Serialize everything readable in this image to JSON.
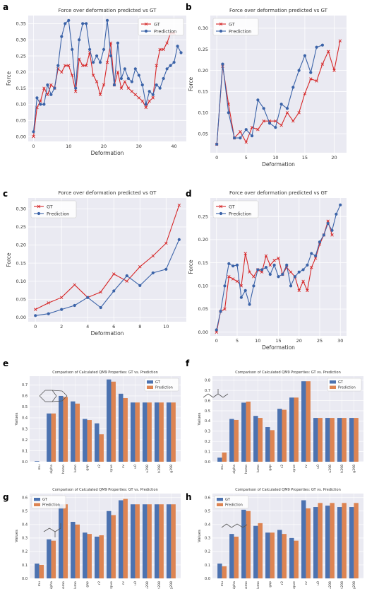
{
  "colors": {
    "gt_line": "#d62728",
    "pred_line": "#3b63a8",
    "gt_bar": "#4c72b0",
    "pred_bar": "#dd8452",
    "plot_bg": "#eaeaf2"
  },
  "chart_data": [
    {
      "panel": "a",
      "type": "line",
      "title": "Force over deformation predicted vs GT",
      "xlabel": "Deformation",
      "ylabel": "Force",
      "xlim": [
        -1.5,
        43.5
      ],
      "ylim": [
        -0.015,
        0.375
      ],
      "xticks": [
        0,
        10,
        20,
        30,
        40
      ],
      "yticks": [
        0.0,
        0.05,
        0.1,
        0.15,
        0.2,
        0.25,
        0.3,
        0.35
      ],
      "ytick_labels": [
        "0.00",
        "0.05",
        "0.10",
        "0.15",
        "0.20",
        "0.25",
        "0.30",
        "0.35"
      ],
      "legend": "top-right",
      "grid": true,
      "series": [
        {
          "name": "GT",
          "marker": "x",
          "x": [
            0,
            1,
            2,
            3,
            4,
            5,
            6,
            7,
            8,
            9,
            10,
            11,
            12,
            13,
            14,
            15,
            16,
            17,
            18,
            19,
            20,
            21,
            22,
            23,
            24,
            25,
            26,
            27,
            28,
            29,
            30,
            31,
            32,
            33,
            34,
            35,
            36,
            37,
            38,
            39,
            40
          ],
          "y": [
            0.0,
            0.09,
            0.11,
            0.15,
            0.13,
            0.16,
            0.15,
            0.21,
            0.2,
            0.22,
            0.22,
            0.19,
            0.14,
            0.24,
            0.22,
            0.22,
            0.26,
            0.19,
            0.17,
            0.13,
            0.16,
            0.23,
            0.29,
            0.16,
            0.2,
            0.15,
            0.17,
            0.15,
            0.14,
            0.13,
            0.12,
            0.11,
            0.09,
            0.11,
            0.12,
            0.22,
            0.27,
            0.27,
            0.29,
            0.32,
            0.32
          ]
        },
        {
          "name": "Prediction",
          "marker": "o",
          "x": [
            0,
            1,
            2,
            3,
            4,
            5,
            6,
            7,
            8,
            9,
            10,
            11,
            12,
            13,
            14,
            15,
            16,
            17,
            18,
            19,
            20,
            21,
            22,
            23,
            24,
            25,
            26,
            27,
            28,
            29,
            30,
            31,
            32,
            33,
            34,
            35,
            36,
            37,
            38,
            39,
            40,
            41,
            42
          ],
          "y": [
            0.015,
            0.12,
            0.1,
            0.1,
            0.16,
            0.13,
            0.15,
            0.22,
            0.31,
            0.35,
            0.36,
            0.27,
            0.15,
            0.3,
            0.35,
            0.35,
            0.27,
            0.23,
            0.25,
            0.23,
            0.27,
            0.36,
            0.25,
            0.16,
            0.29,
            0.18,
            0.21,
            0.18,
            0.17,
            0.21,
            0.19,
            0.16,
            0.1,
            0.14,
            0.13,
            0.16,
            0.15,
            0.18,
            0.21,
            0.22,
            0.23,
            0.28,
            0.26
          ]
        }
      ]
    },
    {
      "panel": "b",
      "type": "line",
      "title": "Force over deformation predicted vs GT",
      "xlabel": "Deformation",
      "ylabel": "Force",
      "xlim": [
        -1.1,
        22.1
      ],
      "ylim": [
        0.005,
        0.33
      ],
      "xticks": [
        0,
        5,
        10,
        15,
        20
      ],
      "yticks": [
        0.05,
        0.1,
        0.15,
        0.2,
        0.25,
        0.3
      ],
      "ytick_labels": [
        "0.05",
        "0.10",
        "0.15",
        "0.20",
        "0.25",
        "0.30"
      ],
      "legend": "top-left",
      "grid": true,
      "series": [
        {
          "name": "GT",
          "marker": "x",
          "x": [
            0,
            1,
            2,
            3,
            4,
            5,
            6,
            7,
            8,
            9,
            10,
            11,
            12,
            13,
            14,
            15,
            16,
            17,
            18,
            19,
            20,
            21
          ],
          "y": [
            0.025,
            0.21,
            0.12,
            0.04,
            0.055,
            0.03,
            0.065,
            0.06,
            0.08,
            0.08,
            0.08,
            0.07,
            0.1,
            0.08,
            0.1,
            0.145,
            0.18,
            0.175,
            0.215,
            0.245,
            0.2,
            0.27
          ]
        },
        {
          "name": "Prediction",
          "marker": "o",
          "x": [
            0,
            1,
            2,
            3,
            4,
            5,
            6,
            7,
            8,
            9,
            10,
            11,
            12,
            13,
            14,
            15,
            16,
            17,
            18
          ],
          "y": [
            0.025,
            0.215,
            0.1,
            0.04,
            0.04,
            0.06,
            0.045,
            0.13,
            0.11,
            0.075,
            0.065,
            0.12,
            0.11,
            0.16,
            0.2,
            0.235,
            0.195,
            0.255,
            0.26
          ]
        }
      ]
    },
    {
      "panel": "c",
      "type": "line",
      "title": "Force over deformation predicted vs GT",
      "xlabel": "Deformation",
      "ylabel": "Force",
      "xlim": [
        -0.55,
        11.55
      ],
      "ylim": [
        -0.012,
        0.33
      ],
      "xticks": [
        0,
        2,
        4,
        6,
        8,
        10
      ],
      "yticks": [
        0.0,
        0.05,
        0.1,
        0.15,
        0.2,
        0.25,
        0.3
      ],
      "ytick_labels": [
        "0.00",
        "0.05",
        "0.10",
        "0.15",
        "0.20",
        "0.25",
        "0.30"
      ],
      "legend": "top-left",
      "grid": true,
      "series": [
        {
          "name": "GT",
          "marker": "x",
          "x": [
            0,
            1,
            2,
            3,
            4,
            5,
            6,
            7,
            8,
            9,
            10,
            11
          ],
          "y": [
            0.022,
            0.04,
            0.055,
            0.09,
            0.055,
            0.07,
            0.12,
            0.1,
            0.14,
            0.17,
            0.205,
            0.31
          ]
        },
        {
          "name": "Prediction",
          "marker": "o",
          "x": [
            0,
            1,
            2,
            3,
            4,
            5,
            6,
            7,
            8,
            9,
            10,
            11
          ],
          "y": [
            0.005,
            0.01,
            0.022,
            0.033,
            0.055,
            0.027,
            0.073,
            0.115,
            0.088,
            0.123,
            0.133,
            0.215
          ]
        }
      ]
    },
    {
      "panel": "d",
      "type": "line",
      "title": "Force over deformation predicted vs GT",
      "xlabel": "Deformation",
      "ylabel": "Force",
      "xlim": [
        -1.5,
        31.5
      ],
      "ylim": [
        -0.008,
        0.29
      ],
      "xticks": [
        0,
        5,
        10,
        15,
        20,
        25,
        30
      ],
      "yticks": [
        0.0,
        0.05,
        0.1,
        0.15,
        0.2,
        0.25
      ],
      "ytick_labels": [
        "0.00",
        "0.05",
        "0.10",
        "0.15",
        "0.20",
        "0.25"
      ],
      "legend": "top-left",
      "grid": true,
      "series": [
        {
          "name": "GT",
          "marker": "x",
          "x": [
            0,
            1,
            2,
            3,
            4,
            5,
            6,
            7,
            8,
            9,
            10,
            11,
            12,
            13,
            14,
            15,
            16,
            17,
            18,
            19,
            20,
            21,
            22,
            23,
            24,
            25,
            26,
            27,
            28
          ],
          "y": [
            0.0,
            0.045,
            0.05,
            0.12,
            0.115,
            0.11,
            0.1,
            0.17,
            0.13,
            0.12,
            0.135,
            0.13,
            0.165,
            0.145,
            0.155,
            0.16,
            0.125,
            0.14,
            0.13,
            0.12,
            0.09,
            0.11,
            0.09,
            0.14,
            0.16,
            0.19,
            0.21,
            0.24,
            0.21
          ]
        },
        {
          "name": "Prediction",
          "marker": "o",
          "x": [
            0,
            1,
            2,
            3,
            4,
            5,
            6,
            7,
            8,
            9,
            10,
            11,
            12,
            13,
            14,
            15,
            16,
            17,
            18,
            19,
            20,
            21,
            22,
            23,
            24,
            25,
            26,
            27,
            28,
            29,
            30
          ],
          "y": [
            0.005,
            0.045,
            0.1,
            0.148,
            0.143,
            0.145,
            0.075,
            0.09,
            0.06,
            0.1,
            0.135,
            0.135,
            0.14,
            0.125,
            0.145,
            0.12,
            0.125,
            0.145,
            0.1,
            0.12,
            0.13,
            0.135,
            0.145,
            0.17,
            0.165,
            0.195,
            0.21,
            0.235,
            0.22,
            0.255,
            0.275
          ]
        }
      ]
    },
    {
      "panel": "e",
      "type": "bar",
      "title": "Comparison of Calculated QM9 Properties: GT vs. Prediction",
      "xlabel": "",
      "ylabel": "Values",
      "ylim": [
        0,
        0.78
      ],
      "yticks": [
        0.0,
        0.1,
        0.2,
        0.3,
        0.4,
        0.5,
        0.6,
        0.7
      ],
      "ytick_labels": [
        "0.0",
        "0.1",
        "0.2",
        "0.3",
        "0.4",
        "0.5",
        "0.6",
        "0.7"
      ],
      "legend": "top-right",
      "grid": true,
      "categories": [
        "mu",
        "alpha",
        "homo",
        "lumo",
        "gap",
        "r2",
        "zpve",
        "cv",
        "u0",
        "u298",
        "h298",
        "g298"
      ],
      "series": [
        {
          "name": "GT",
          "values": [
            0.005,
            0.44,
            0.6,
            0.55,
            0.39,
            0.35,
            0.75,
            0.62,
            0.54,
            0.54,
            0.54,
            0.54
          ]
        },
        {
          "name": "Prediction",
          "values": [
            0.0,
            0.44,
            0.59,
            0.53,
            0.38,
            0.25,
            0.73,
            0.58,
            0.54,
            0.54,
            0.54,
            0.54
          ]
        }
      ]
    },
    {
      "panel": "f",
      "type": "bar",
      "title": "Comparison of Calculated QM9 Properties: GT vs. Prediction",
      "xlabel": "",
      "ylabel": "Values",
      "ylim": [
        0,
        0.84
      ],
      "yticks": [
        0.0,
        0.1,
        0.2,
        0.3,
        0.4,
        0.5,
        0.6,
        0.7,
        0.8
      ],
      "ytick_labels": [
        "0.0",
        "0.1",
        "0.2",
        "0.3",
        "0.4",
        "0.5",
        "0.6",
        "0.7",
        "0.8"
      ],
      "legend": "top-right",
      "grid": true,
      "categories": [
        "mu",
        "alpha",
        "homo",
        "lumo",
        "gap",
        "r2",
        "zpve",
        "cv",
        "u0",
        "u298",
        "h298",
        "g298"
      ],
      "series": [
        {
          "name": "GT",
          "values": [
            0.04,
            0.42,
            0.58,
            0.45,
            0.34,
            0.52,
            0.63,
            0.79,
            0.43,
            0.43,
            0.43,
            0.43
          ]
        },
        {
          "name": "Prediction",
          "values": [
            0.09,
            0.41,
            0.59,
            0.43,
            0.31,
            0.51,
            0.63,
            0.79,
            0.43,
            0.43,
            0.43,
            0.43
          ]
        }
      ]
    },
    {
      "panel": "g",
      "type": "bar",
      "title": "Comparison of Calculated QM9 Properties: GT vs. Prediction",
      "xlabel": "",
      "ylabel": "Values",
      "ylim": [
        0,
        0.63
      ],
      "yticks": [
        0.0,
        0.1,
        0.2,
        0.3,
        0.4,
        0.5,
        0.6
      ],
      "ytick_labels": [
        "0.0",
        "0.1",
        "0.2",
        "0.3",
        "0.4",
        "0.5",
        "0.6"
      ],
      "legend": "top-left",
      "grid": true,
      "categories": [
        "mu",
        "alpha",
        "homo",
        "lumo",
        "gap",
        "r2",
        "zpve",
        "cv",
        "u0",
        "u298",
        "h298",
        "g298"
      ],
      "series": [
        {
          "name": "GT",
          "values": [
            0.11,
            0.29,
            0.55,
            0.42,
            0.34,
            0.31,
            0.5,
            0.58,
            0.55,
            0.55,
            0.55,
            0.55
          ]
        },
        {
          "name": "Prediction",
          "values": [
            0.1,
            0.28,
            0.55,
            0.4,
            0.33,
            0.32,
            0.47,
            0.59,
            0.55,
            0.55,
            0.55,
            0.55
          ]
        }
      ]
    },
    {
      "panel": "h",
      "type": "bar",
      "title": "Comparison of Calculated QM9 Properties: GT vs. Prediction",
      "xlabel": "",
      "ylabel": "Values",
      "ylim": [
        0,
        0.63
      ],
      "yticks": [
        0.0,
        0.1,
        0.2,
        0.3,
        0.4,
        0.5,
        0.6
      ],
      "ytick_labels": [
        "0.0",
        "0.1",
        "0.2",
        "0.3",
        "0.4",
        "0.5",
        "0.6"
      ],
      "legend": "top-left",
      "grid": true,
      "categories": [
        "mu",
        "alpha",
        "homo",
        "lumo",
        "gap",
        "r2",
        "zpve",
        "cv",
        "u0",
        "u298",
        "h298",
        "g298"
      ],
      "series": [
        {
          "name": "GT",
          "values": [
            0.11,
            0.33,
            0.51,
            0.39,
            0.34,
            0.36,
            0.3,
            0.58,
            0.53,
            0.54,
            0.53,
            0.53
          ]
        },
        {
          "name": "Prediction",
          "values": [
            0.09,
            0.31,
            0.5,
            0.41,
            0.34,
            0.33,
            0.28,
            0.52,
            0.56,
            0.56,
            0.56,
            0.56
          ]
        }
      ]
    }
  ]
}
